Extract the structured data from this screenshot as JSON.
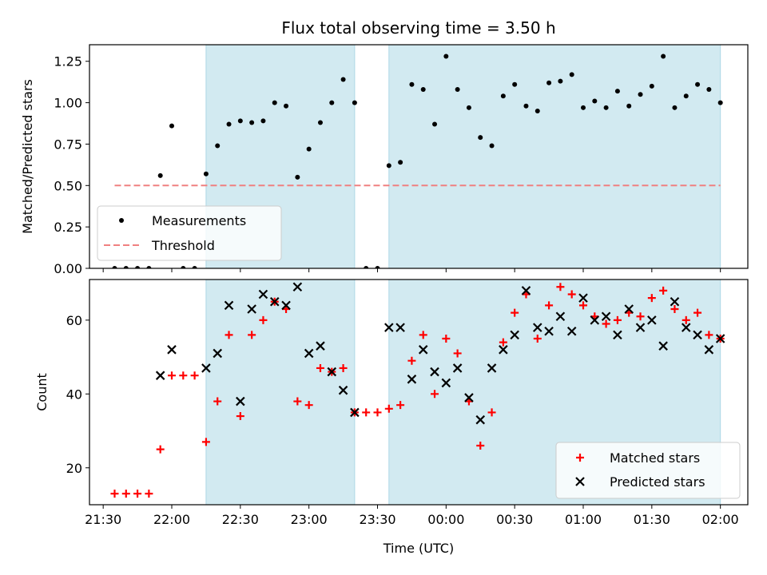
{
  "chart_data": [
    {
      "type": "scatter",
      "title": "Flux total observing time = 3.50 h",
      "xlabel": "",
      "ylabel": "Matched/Predicted stars",
      "xlim": [
        "21:24",
        "02:12"
      ],
      "ylim": [
        0,
        1.35
      ],
      "yticks": [
        "0.00",
        "0.25",
        "0.50",
        "0.75",
        "1.00",
        "1.25"
      ],
      "legend_position": "lower-left",
      "shaded_intervals": [
        {
          "start": "22:15",
          "end": "23:20",
          "color": "#add8e6"
        },
        {
          "start": "23:35",
          "end": "02:00",
          "color": "#add8e6"
        }
      ],
      "series": [
        {
          "name": "Measurements",
          "color": "#000000",
          "x": [
            "21:35",
            "21:40",
            "21:45",
            "21:50",
            "21:55",
            "22:00",
            "22:05",
            "22:10",
            "22:15",
            "22:20",
            "22:25",
            "22:30",
            "22:35",
            "22:40",
            "22:45",
            "22:50",
            "22:55",
            "23:00",
            "23:05",
            "23:10",
            "23:15",
            "23:20",
            "23:25",
            "23:30",
            "23:35",
            "23:40",
            "23:45",
            "23:50",
            "23:55",
            "00:00",
            "00:05",
            "00:10",
            "00:15",
            "00:20",
            "00:25",
            "00:30",
            "00:35",
            "00:40",
            "00:45",
            "00:50",
            "00:55",
            "01:00",
            "01:05",
            "01:10",
            "01:15",
            "01:20",
            "01:25",
            "01:30",
            "01:35",
            "01:40",
            "01:45",
            "01:50",
            "01:55",
            "02:00"
          ],
          "y": [
            0,
            0,
            0,
            0,
            0.56,
            0.86,
            0,
            0,
            0.57,
            0.74,
            0.87,
            0.89,
            0.88,
            0.89,
            1.0,
            0.98,
            0.55,
            0.72,
            0.88,
            1.0,
            1.14,
            1.0,
            0,
            0,
            0.62,
            0.64,
            1.11,
            1.08,
            0.87,
            1.28,
            1.08,
            0.97,
            0.79,
            0.74,
            1.04,
            1.11,
            0.98,
            0.95,
            1.12,
            1.13,
            1.17,
            0.97,
            1.01,
            0.97,
            1.07,
            0.98,
            1.05,
            1.1,
            1.28,
            0.97,
            1.04,
            1.11,
            1.08,
            1.0
          ]
        },
        {
          "name": "Threshold",
          "color": "#f08080",
          "x": [
            "21:35",
            "02:00"
          ],
          "y": [
            0.5,
            0.5
          ]
        }
      ]
    },
    {
      "type": "scatter",
      "title": "",
      "xlabel": "Time (UTC)",
      "ylabel": "Count",
      "xlim": [
        "21:24",
        "02:12"
      ],
      "ylim": [
        10,
        71
      ],
      "yticks": [
        "20",
        "40",
        "60"
      ],
      "xticks": [
        "21:30",
        "22:00",
        "22:30",
        "23:00",
        "23:30",
        "00:00",
        "00:30",
        "01:00",
        "01:30",
        "02:00"
      ],
      "legend_position": "lower-right",
      "shaded_intervals": [
        {
          "start": "22:15",
          "end": "23:20",
          "color": "#add8e6"
        },
        {
          "start": "23:35",
          "end": "02:00",
          "color": "#add8e6"
        }
      ],
      "series": [
        {
          "name": "Matched stars",
          "color": "#ff0000",
          "marker": "plus",
          "x": [
            "21:35",
            "21:40",
            "21:45",
            "21:50",
            "21:55",
            "22:00",
            "22:05",
            "22:10",
            "22:15",
            "22:20",
            "22:25",
            "22:30",
            "22:35",
            "22:40",
            "22:45",
            "22:50",
            "22:55",
            "23:00",
            "23:05",
            "23:10",
            "23:15",
            "23:20",
            "23:25",
            "23:30",
            "23:35",
            "23:40",
            "23:45",
            "23:50",
            "23:55",
            "00:00",
            "00:05",
            "00:10",
            "00:15",
            "00:20",
            "00:25",
            "00:30",
            "00:35",
            "00:40",
            "00:45",
            "00:50",
            "00:55",
            "01:00",
            "01:05",
            "01:10",
            "01:15",
            "01:20",
            "01:25",
            "01:30",
            "01:35",
            "01:40",
            "01:45",
            "01:50",
            "01:55",
            "02:00"
          ],
          "y": [
            13,
            13,
            13,
            13,
            25,
            45,
            45,
            45,
            27,
            38,
            56,
            34,
            56,
            60,
            65,
            63,
            38,
            37,
            47,
            46,
            47,
            35,
            35,
            35,
            36,
            37,
            49,
            56,
            40,
            55,
            51,
            38,
            26,
            35,
            54,
            62,
            67,
            55,
            64,
            69,
            67,
            64,
            61,
            59,
            60,
            62,
            61,
            66,
            68,
            63,
            60,
            62,
            56,
            55
          ]
        },
        {
          "name": "Predicted stars",
          "color": "#000000",
          "marker": "x",
          "x": [
            "21:55",
            "22:00",
            "22:15",
            "22:20",
            "22:25",
            "22:30",
            "22:35",
            "22:40",
            "22:45",
            "22:50",
            "22:55",
            "23:00",
            "23:05",
            "23:10",
            "23:15",
            "23:20",
            "23:35",
            "23:40",
            "23:45",
            "23:50",
            "23:55",
            "00:00",
            "00:05",
            "00:10",
            "00:15",
            "00:20",
            "00:25",
            "00:30",
            "00:35",
            "00:40",
            "00:45",
            "00:50",
            "00:55",
            "01:00",
            "01:05",
            "01:10",
            "01:15",
            "01:20",
            "01:25",
            "01:30",
            "01:35",
            "01:40",
            "01:45",
            "01:50",
            "01:55",
            "02:00"
          ],
          "y": [
            45,
            52,
            47,
            51,
            64,
            38,
            63,
            67,
            65,
            64,
            69,
            51,
            53,
            46,
            41,
            35,
            58,
            58,
            44,
            52,
            46,
            43,
            47,
            39,
            33,
            47,
            52,
            56,
            68,
            58,
            57,
            61,
            57,
            66,
            60,
            61,
            56,
            63,
            58,
            60,
            53,
            65,
            58,
            56,
            52,
            55
          ]
        }
      ]
    }
  ]
}
